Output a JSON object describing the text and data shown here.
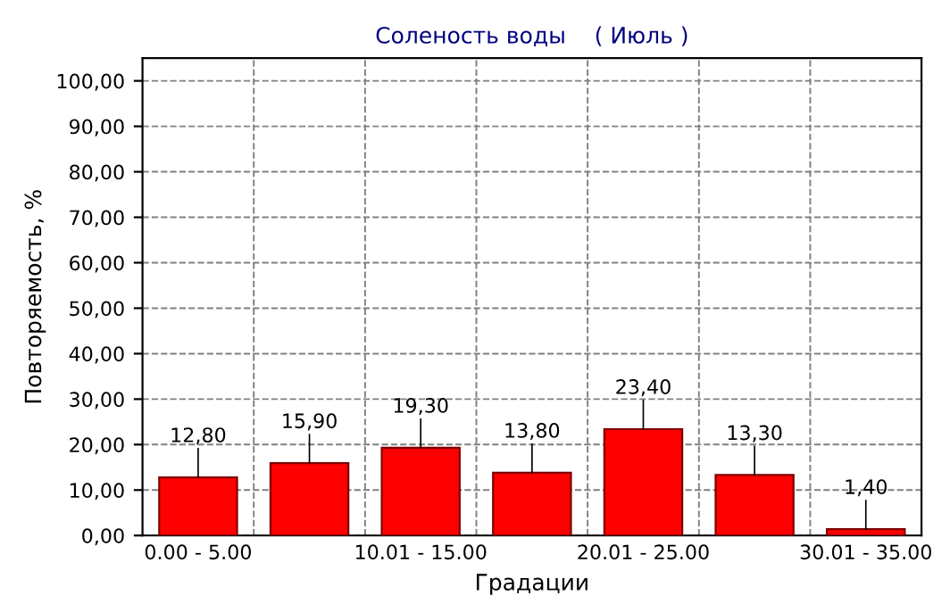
{
  "chart_data": {
    "type": "bar",
    "title": "Соленость воды    ( Июль )",
    "xlabel": "Градации",
    "ylabel": "Повторяемость, %",
    "categories": [
      "0.00 - 5.00",
      null,
      "10.01 - 15.00",
      null,
      "20.01 - 25.00",
      null,
      "30.01 - 35.00"
    ],
    "values": [
      12.8,
      15.9,
      19.3,
      13.8,
      23.4,
      13.3,
      1.4
    ],
    "value_labels": [
      "12,80",
      "15,90",
      "19,30",
      "13,80",
      "23,40",
      "13,30",
      "1,40"
    ],
    "color": "#ff0000",
    "ylim": [
      0,
      105
    ],
    "yticks": [
      {
        "value": 0,
        "label": "0,00"
      },
      {
        "value": 10,
        "label": "10,00"
      },
      {
        "value": 20,
        "label": "20,00"
      },
      {
        "value": 30,
        "label": "30,00"
      },
      {
        "value": 40,
        "label": "40,00"
      },
      {
        "value": 50,
        "label": "50,00"
      },
      {
        "value": 60,
        "label": "60,00"
      },
      {
        "value": 70,
        "label": "70,00"
      },
      {
        "value": 80,
        "label": "80,00"
      },
      {
        "value": 90,
        "label": "90,00"
      },
      {
        "value": 100,
        "label": "100,00"
      }
    ],
    "grid": true
  }
}
